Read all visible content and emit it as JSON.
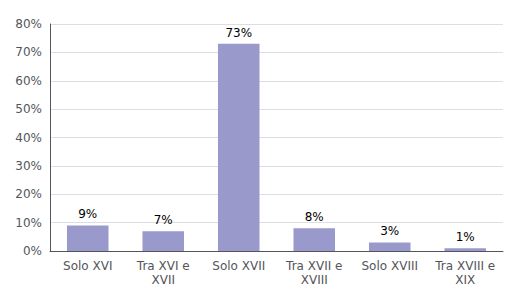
{
  "chart_data": {
    "type": "bar",
    "categories": [
      "Solo XVI",
      "Tra XVI e\nXVII",
      "Solo XVII",
      "Tra XVII e\nXVIII",
      "Solo XVIII",
      "Tra XVIII e\nXIX"
    ],
    "values": [
      9,
      7,
      73,
      8,
      3,
      1
    ],
    "value_labels": [
      "9%",
      "7%",
      "73%",
      "8%",
      "3%",
      "1%"
    ],
    "data_labels": true,
    "color": "#9999cc",
    "ylim": [
      0,
      80
    ],
    "yticks": [
      {
        "value": 0,
        "label": "0%"
      },
      {
        "value": 10,
        "label": "10%"
      },
      {
        "value": 20,
        "label": "20%"
      },
      {
        "value": 30,
        "label": "30%"
      },
      {
        "value": 40,
        "label": "40%"
      },
      {
        "value": 50,
        "label": "50%"
      },
      {
        "value": 60,
        "label": "60%"
      },
      {
        "value": 70,
        "label": "70%"
      },
      {
        "value": 80,
        "label": "80%"
      }
    ],
    "grid": true
  }
}
